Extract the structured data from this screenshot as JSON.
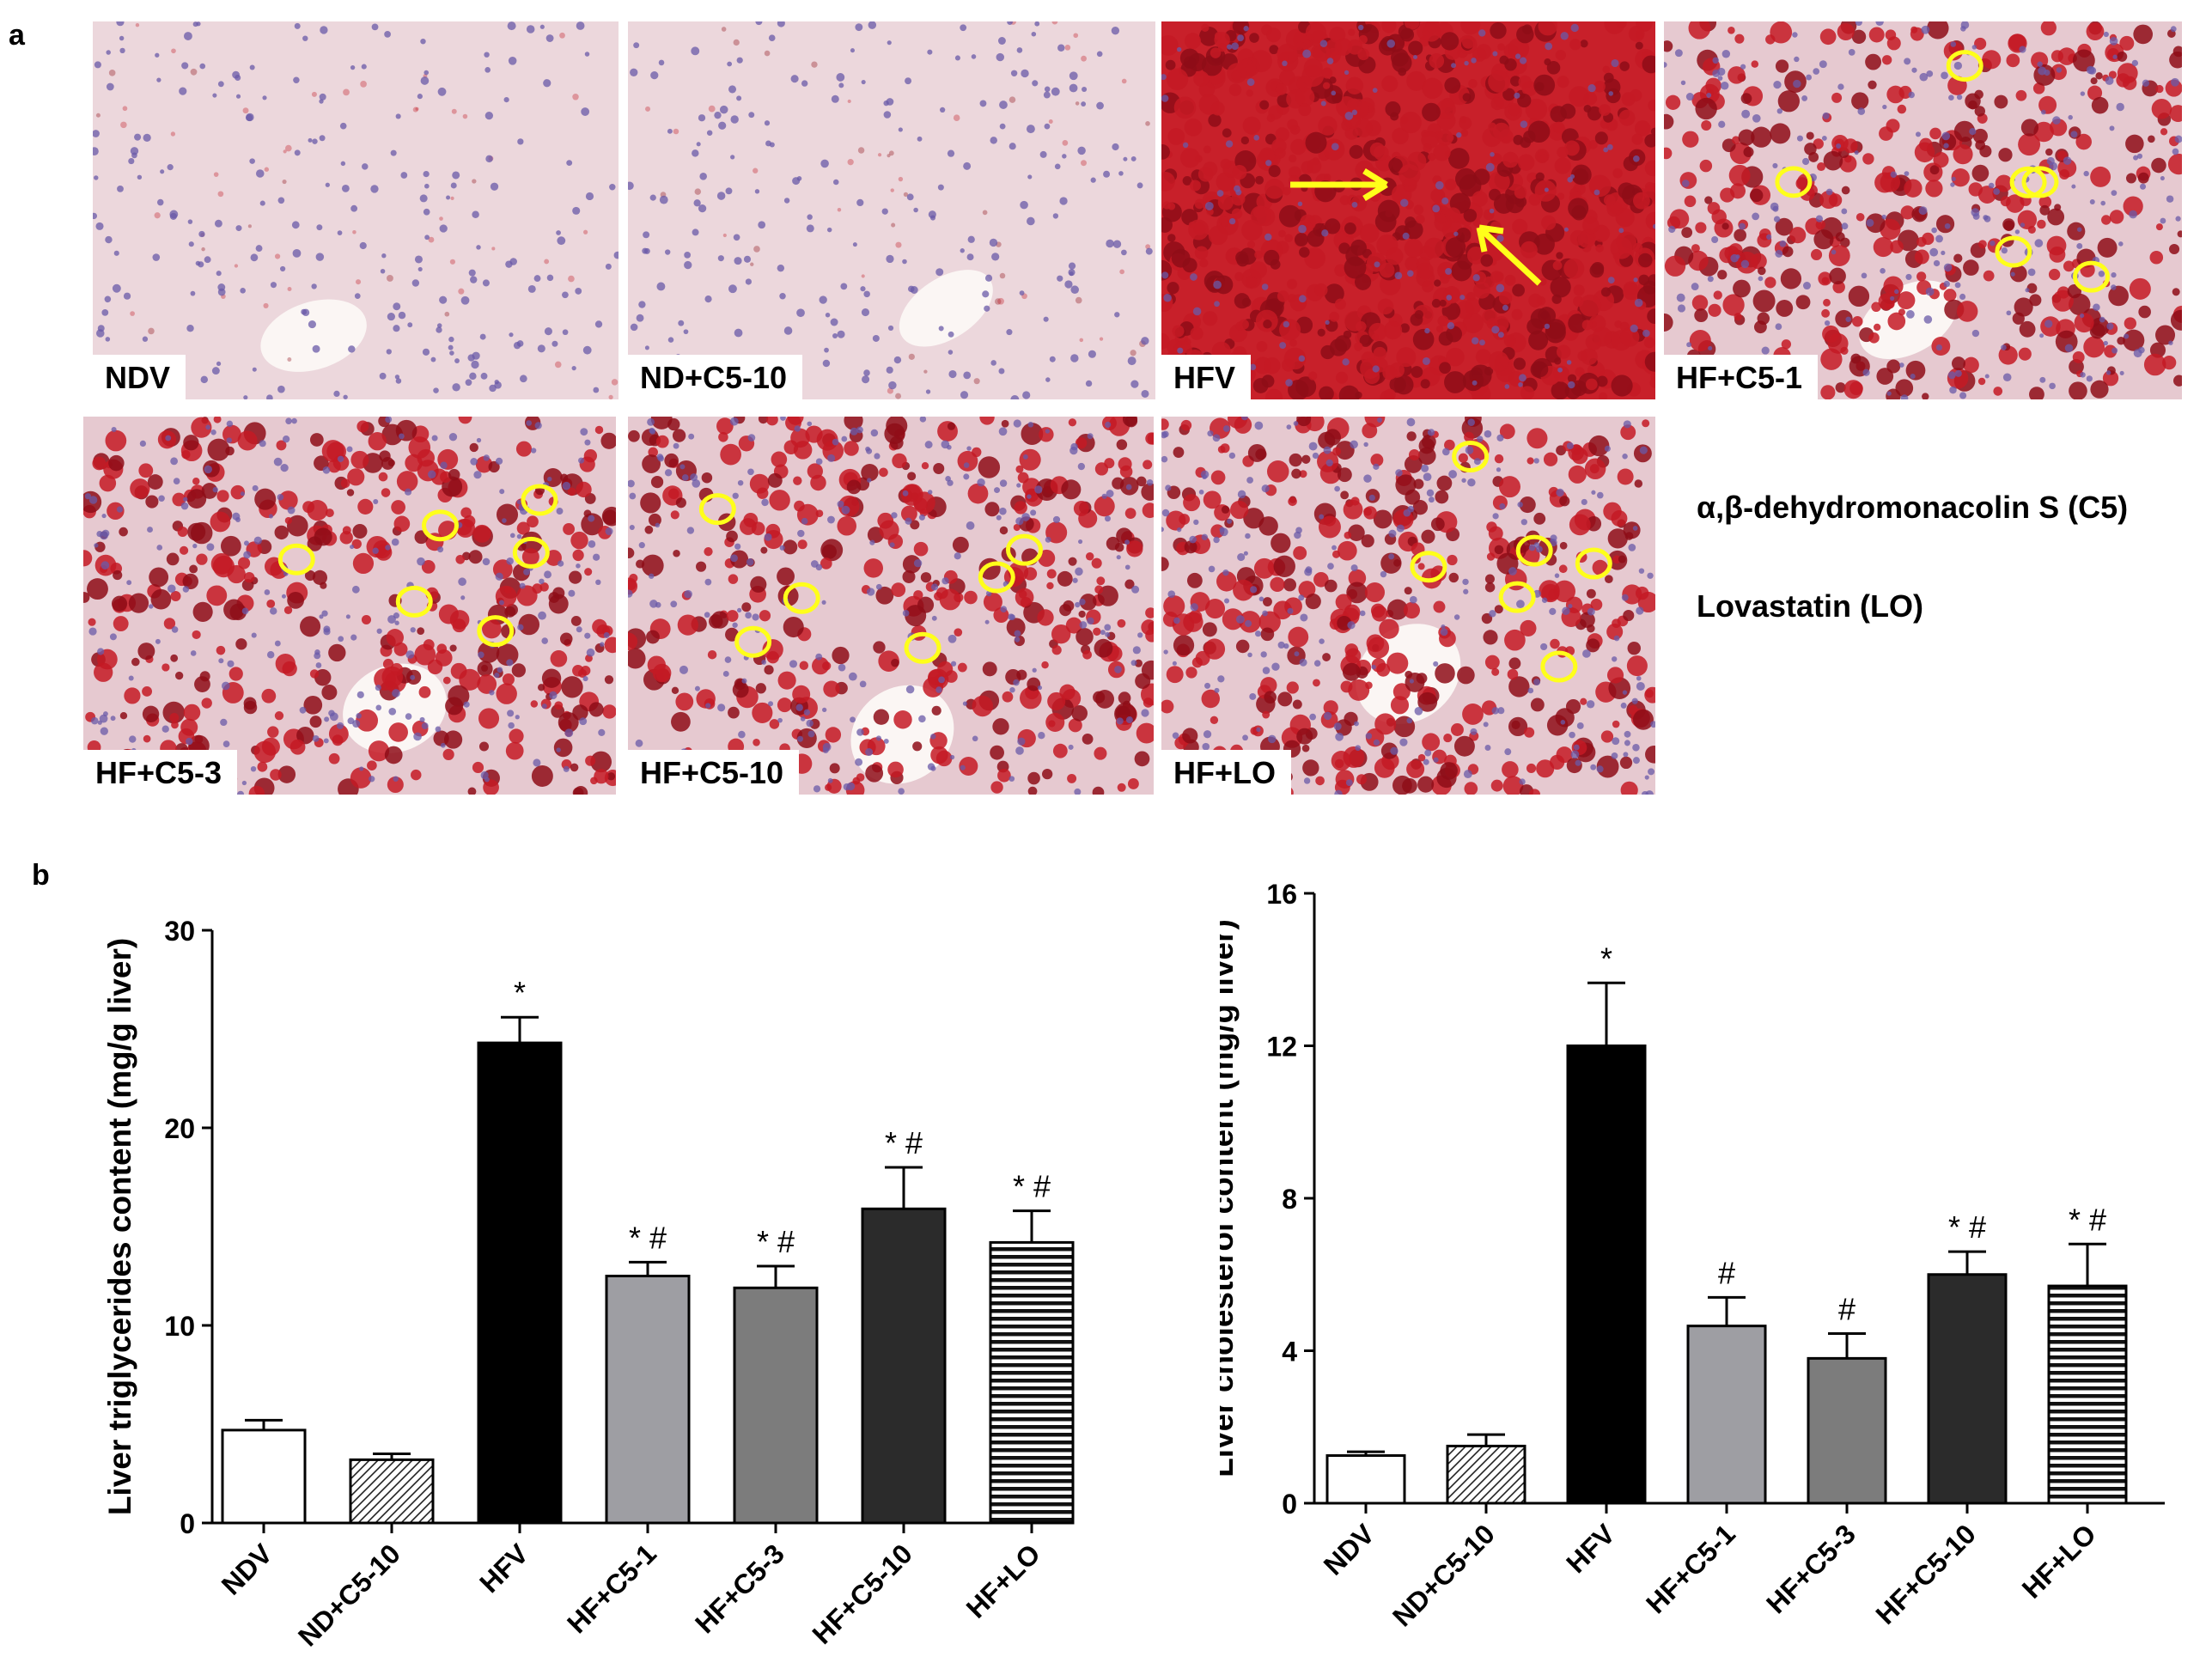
{
  "panel_a": {
    "letter": "a",
    "images": [
      {
        "id": "ndv",
        "label": "NDV",
        "stain": "light",
        "circles": 0,
        "arrows": 0
      },
      {
        "id": "nd-c5-10",
        "label": "ND+C5-10",
        "stain": "light",
        "circles": 0,
        "arrows": 0
      },
      {
        "id": "hfv",
        "label": "HFV",
        "stain": "heavy",
        "circles": 0,
        "arrows": 2
      },
      {
        "id": "hf-c5-1",
        "label": "HF+C5-1",
        "stain": "medium",
        "circles": 6,
        "arrows": 0
      },
      {
        "id": "hf-c5-3",
        "label": "HF+C5-3",
        "stain": "medium",
        "circles": 6,
        "arrows": 0
      },
      {
        "id": "hf-c5-10",
        "label": "HF+C5-10",
        "stain": "medium",
        "circles": 6,
        "arrows": 0
      },
      {
        "id": "hf-lo",
        "label": "HF+LO",
        "stain": "medium",
        "circles": 6,
        "arrows": 0
      }
    ],
    "legend": [
      "α,β-dehydromonacolin S (C5)",
      "Lovastatin (LO)"
    ]
  },
  "panel_b": {
    "letter": "b"
  },
  "colors": {
    "stain_red": "#c41a24",
    "stain_dark_red": "#8e0d18",
    "nuclei_purple": "#6a5aa8",
    "tissue_pink": "#ecd7dc",
    "marker_yellow": "#ffff1a"
  },
  "chart_data": [
    {
      "type": "bar",
      "ylabel": "Liver triglycerides content (mg/g liver)",
      "ylim": [
        0,
        30
      ],
      "yticks": [
        0,
        10,
        20,
        30
      ],
      "categories": [
        "NDV",
        "ND+C5-10",
        "HFV",
        "HF+C5-1",
        "HF+C5-3",
        "HF+C5-10",
        "HF+LO"
      ],
      "values": [
        4.7,
        3.2,
        24.3,
        12.5,
        11.9,
        15.9,
        14.2
      ],
      "errors": [
        0.5,
        0.3,
        1.3,
        0.7,
        1.1,
        2.1,
        1.6
      ],
      "annotations": [
        "",
        "",
        "*",
        "*#",
        "*#",
        "*#",
        "*#"
      ],
      "fills": [
        "white",
        "hatched",
        "#000000",
        "#9e9ea3",
        "#7c7c7c",
        "#2b2b2b",
        "striped"
      ]
    },
    {
      "type": "bar",
      "ylabel": "Liver cholesterol content (mg/g liver)",
      "ylim": [
        0,
        16
      ],
      "yticks": [
        0,
        4,
        8,
        12,
        16
      ],
      "categories": [
        "NDV",
        "ND+C5-10",
        "HFV",
        "HF+C5-1",
        "HF+C5-3",
        "HF+C5-10",
        "HF+LO"
      ],
      "values": [
        1.25,
        1.5,
        12.0,
        4.65,
        3.8,
        6.0,
        5.7
      ],
      "errors": [
        0.1,
        0.3,
        1.65,
        0.75,
        0.65,
        0.6,
        1.1
      ],
      "annotations": [
        "",
        "",
        "*",
        "#",
        "#",
        "*#",
        "*#"
      ],
      "fills": [
        "white",
        "hatched",
        "#000000",
        "#9e9ea3",
        "#7c7c7c",
        "#2b2b2b",
        "striped"
      ]
    }
  ]
}
